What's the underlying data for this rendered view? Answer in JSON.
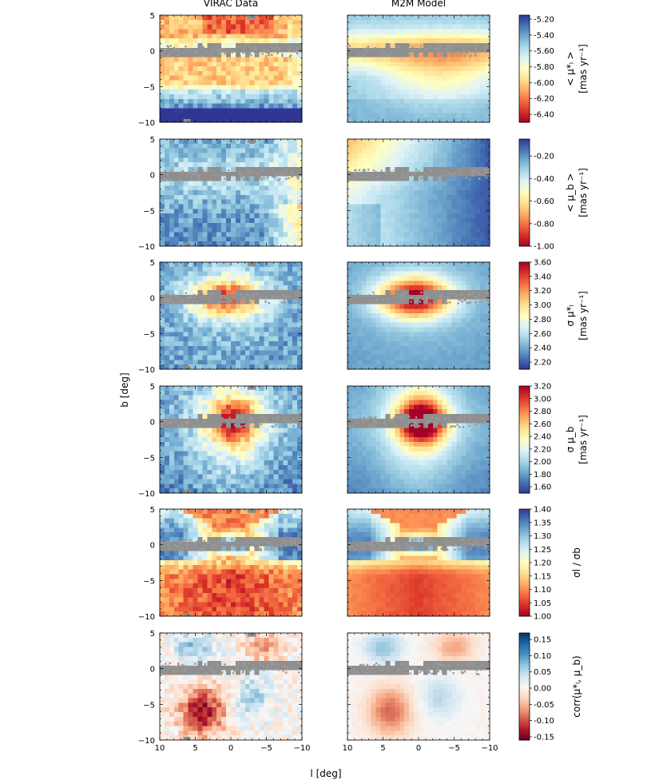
{
  "chart_data": {
    "type": "heatmap",
    "column_titles": [
      "VIRAC Data",
      "M2M Model"
    ],
    "xlabel": "l [deg]",
    "ylabel": "b [deg]",
    "xlim": [
      10,
      -10
    ],
    "ylim": [
      -10,
      5
    ],
    "x_ticks": [
      10,
      5,
      0,
      -5,
      -10
    ],
    "x_tick_labels": [
      "10",
      "5",
      "0",
      "−5",
      "−10"
    ],
    "y_ticks": [
      5,
      0,
      -5,
      -10
    ],
    "y_tick_labels": [
      "5",
      "0",
      "−5",
      "−10"
    ],
    "grid": false,
    "rows": [
      {
        "quantity": "<μ_l*>",
        "colorbar_label": [
          "< μ*ₗ >",
          "[mas yr⁻¹]"
        ],
        "colormap": "RdYlBu",
        "vmin": -6.5,
        "vmax": -5.15,
        "cbar_ticks": [
          -5.2,
          -5.4,
          -5.6,
          -5.8,
          -6.0,
          -6.2,
          -6.4
        ],
        "cbar_tick_labels": [
          "-5.20",
          "-5.40",
          "-5.60",
          "-5.80",
          "-6.00",
          "-6.20",
          "-6.40"
        ]
      },
      {
        "quantity": "<μ_b>",
        "colorbar_label": [
          "< μ_b >",
          "[mas yr⁻¹]"
        ],
        "colormap": "RdYlBu",
        "vmin": -1.0,
        "vmax": -0.05,
        "cbar_ticks": [
          -0.2,
          -0.4,
          -0.6,
          -0.8,
          -1.0
        ],
        "cbar_tick_labels": [
          "-0.20",
          "-0.40",
          "-0.60",
          "-0.80",
          "-1.00"
        ]
      },
      {
        "quantity": "σ_μl*",
        "colorbar_label": [
          "σ μ*ₗ",
          "[mas yr⁻¹]"
        ],
        "colormap": "RdYlBu_r",
        "vmin": 2.1,
        "vmax": 3.6,
        "cbar_ticks": [
          3.6,
          3.4,
          3.2,
          3.0,
          2.8,
          2.6,
          2.4,
          2.2
        ],
        "cbar_tick_labels": [
          "3.60",
          "3.40",
          "3.20",
          "3.00",
          "2.80",
          "2.60",
          "2.40",
          "2.20"
        ]
      },
      {
        "quantity": "σ_μb",
        "colorbar_label": [
          "σ μ_b",
          "[mas yr⁻¹]"
        ],
        "colormap": "RdYlBu_r",
        "vmin": 1.5,
        "vmax": 3.2,
        "cbar_ticks": [
          3.2,
          3.0,
          2.8,
          2.6,
          2.4,
          2.2,
          2.0,
          1.8,
          1.6
        ],
        "cbar_tick_labels": [
          "3.20",
          "3.00",
          "2.80",
          "2.60",
          "2.40",
          "2.20",
          "2.00",
          "1.80",
          "1.60"
        ]
      },
      {
        "quantity": "σ_l / σ_b",
        "colorbar_label": [
          "σl / σb"
        ],
        "colormap": "RdYlBu",
        "vmin": 1.0,
        "vmax": 1.4,
        "cbar_ticks": [
          1.4,
          1.35,
          1.3,
          1.25,
          1.2,
          1.15,
          1.1,
          1.05,
          1.0
        ],
        "cbar_tick_labels": [
          "1.40",
          "1.35",
          "1.30",
          "1.25",
          "1.20",
          "1.15",
          "1.10",
          "1.05",
          "1.00"
        ]
      },
      {
        "quantity": "corr(μ_l*, μ_b)",
        "colorbar_label": [
          "corr(μ*ₗ, μ_b)"
        ],
        "colormap": "RdBu",
        "vmin": -0.16,
        "vmax": 0.17,
        "cbar_ticks": [
          0.15,
          0.1,
          0.05,
          0.0,
          -0.05,
          -0.1,
          -0.15
        ],
        "cbar_tick_labels": [
          "0.15",
          "0.10",
          "0.05",
          "0.00",
          "-0.05",
          "-0.10",
          "-0.15"
        ]
      }
    ],
    "masked_color": "#8c8c8c"
  }
}
